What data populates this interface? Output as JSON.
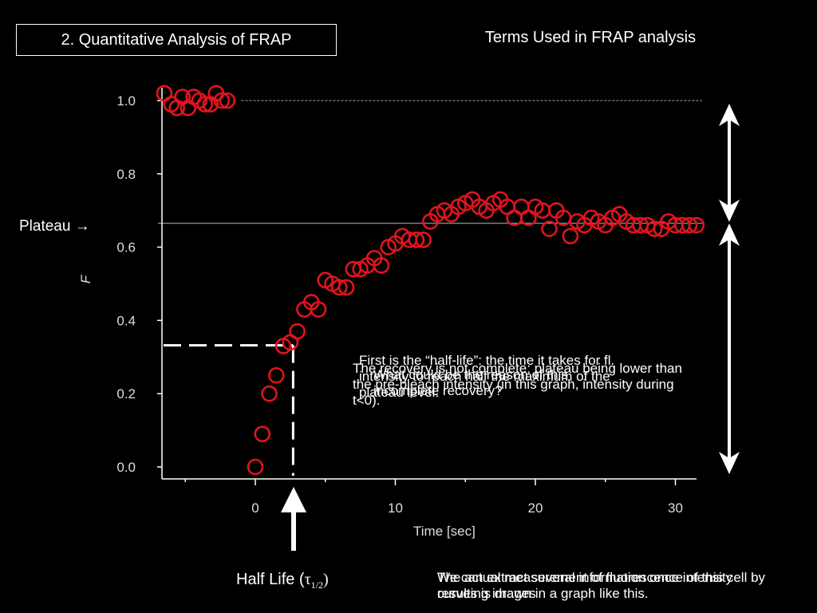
{
  "slide": {
    "title": "2. Quantitative Analysis of FRAP",
    "terms_title": "Terms Used in FRAP analysis"
  },
  "labels": {
    "plateau": "Plateau",
    "plateau_arrow": "→",
    "half_life_text": "Half Life (",
    "half_life_tau": "τ",
    "half_life_sub": "1/2",
    "half_life_close": ")"
  },
  "overlapping_text": {
    "half_life_def": "First is the “half-life”: the time it takes for fl. intensity to reach half the maximum of the plateau level.",
    "incomplete_recovery": "The recovery is not complete; plateau being lower than the pre-bleach intensity (in this graph, intensity during t<0).",
    "question": "What could be the reason of this incomplete recovery?",
    "bottom_1": "We can extract several information once intensity curves is drawn in a graph like this.",
    "bottom_2": "The actual measurement of fluorescence of this cell by resulting images"
  },
  "chart_data": {
    "type": "scatter",
    "xlabel": "Time [sec]",
    "ylabel": "F",
    "xlim": [
      -7,
      32
    ],
    "ylim": [
      -0.02,
      1.05
    ],
    "xticks": [
      0,
      10,
      20,
      30
    ],
    "yticks": [
      0.0,
      0.2,
      0.4,
      0.6,
      0.8,
      1.0
    ],
    "ytick_labels": [
      "0.0",
      "0.2",
      "0.4",
      "0.6",
      "0.8",
      "1.0"
    ],
    "marker_color": "#e0141e",
    "plateau_level": 0.665,
    "prebleach_level": 1.0,
    "half_life_y": 0.332,
    "half_life_x": 2.7,
    "series": [
      {
        "x": [
          -6.5,
          -6.0,
          -5.6,
          -5.2,
          -4.8,
          -4.4,
          -4.0,
          -3.6,
          -3.2,
          -2.8,
          -2.4,
          -2.0,
          0.0,
          0.5,
          1.0,
          1.5,
          2.0,
          2.5,
          3.0,
          3.5,
          4.0,
          4.5,
          5.0,
          5.5,
          6.0,
          6.5,
          7.0,
          7.5,
          8.0,
          8.5,
          9.0,
          9.5,
          10.0,
          10.5,
          11.0,
          11.5,
          12.0,
          12.5,
          13.0,
          13.5,
          14.0,
          14.5,
          15.0,
          15.5,
          16.0,
          16.5,
          17.0,
          17.5,
          18.0,
          18.5,
          19.0,
          19.5,
          20.0,
          20.5,
          21.0,
          21.5,
          22.0,
          22.5,
          23.0,
          23.5,
          24.0,
          24.5,
          25.0,
          25.5,
          26.0,
          26.5,
          27.0,
          27.5,
          28.0,
          28.5,
          29.0,
          29.5,
          30.0,
          30.5,
          31.0,
          31.5
        ],
        "y": [
          1.02,
          0.99,
          0.98,
          1.01,
          0.98,
          1.01,
          1.0,
          0.99,
          0.99,
          1.02,
          1.0,
          1.0,
          0.0,
          0.09,
          0.2,
          0.25,
          0.33,
          0.34,
          0.37,
          0.43,
          0.45,
          0.43,
          0.51,
          0.5,
          0.49,
          0.49,
          0.54,
          0.54,
          0.55,
          0.57,
          0.55,
          0.6,
          0.61,
          0.63,
          0.62,
          0.62,
          0.62,
          0.67,
          0.69,
          0.7,
          0.69,
          0.71,
          0.72,
          0.73,
          0.71,
          0.7,
          0.72,
          0.73,
          0.71,
          0.68,
          0.71,
          0.68,
          0.71,
          0.7,
          0.65,
          0.7,
          0.68,
          0.63,
          0.67,
          0.66,
          0.68,
          0.67,
          0.66,
          0.68,
          0.69,
          0.67,
          0.66,
          0.66,
          0.66,
          0.65,
          0.65,
          0.67,
          0.66,
          0.66,
          0.66,
          0.66
        ]
      }
    ]
  }
}
